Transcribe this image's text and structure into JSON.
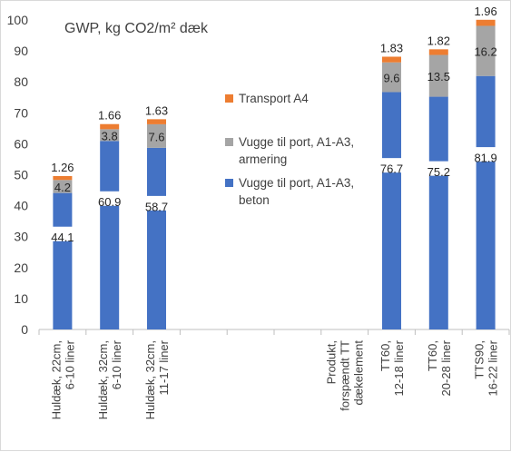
{
  "chart_data": {
    "type": "bar",
    "stacked": true,
    "title": "GWP, kg CO2/m² dæk",
    "xlabel": "",
    "ylabel": "",
    "ylim": [
      0,
      100
    ],
    "yticks": [
      0,
      10,
      20,
      30,
      40,
      50,
      60,
      70,
      80,
      90,
      100
    ],
    "grid": false,
    "legend_position": "center-right",
    "categories": [
      [
        "Huldæk, 22cm,",
        "6-10 liner"
      ],
      [
        "Huldæk, 32cm,",
        "6-10 liner"
      ],
      [
        "Huldæk, 32cm,",
        "11-17 liner"
      ],
      [],
      [],
      [],
      [
        "Produkt,",
        "forspændt TT",
        "dækelement"
      ],
      [
        "TT60,",
        "12-18 liner"
      ],
      [
        "TT60,",
        "20-28 liner"
      ],
      [
        "TTS90,",
        "16-22 liner"
      ]
    ],
    "series": [
      {
        "name": "Vugge til port, A1-A3, beton",
        "legend_lines": [
          "Vugge til port, A1-A3,",
          "beton"
        ],
        "color": "#4472c4",
        "values": [
          44.1,
          60.9,
          58.7,
          null,
          null,
          null,
          null,
          76.7,
          75.2,
          81.9
        ],
        "labels": [
          "44.1",
          "60.9",
          "58.7",
          "",
          "",
          "",
          "",
          "76.7",
          "75.2",
          "81.9"
        ]
      },
      {
        "name": "Vugge til port, A1-A3, armering",
        "legend_lines": [
          "Vugge til port, A1-A3,",
          "armering"
        ],
        "color": "#a5a5a5",
        "values": [
          4.2,
          3.8,
          7.6,
          null,
          null,
          null,
          null,
          9.6,
          13.5,
          16.2
        ],
        "labels": [
          "4.2",
          "3.8",
          "7.6",
          "",
          "",
          "",
          "",
          "9.6",
          "13.5",
          "16.2"
        ]
      },
      {
        "name": "Transport A4",
        "legend_lines": [
          "Transport A4"
        ],
        "color": "#ed7d31",
        "values": [
          1.26,
          1.66,
          1.63,
          null,
          null,
          null,
          null,
          1.83,
          1.82,
          1.96
        ],
        "labels": [
          "1.26",
          "1.66",
          "1.63",
          "",
          "",
          "",
          "",
          "1.83",
          "1.82",
          "1.96"
        ]
      }
    ],
    "legend_order": [
      2,
      1,
      0
    ]
  }
}
